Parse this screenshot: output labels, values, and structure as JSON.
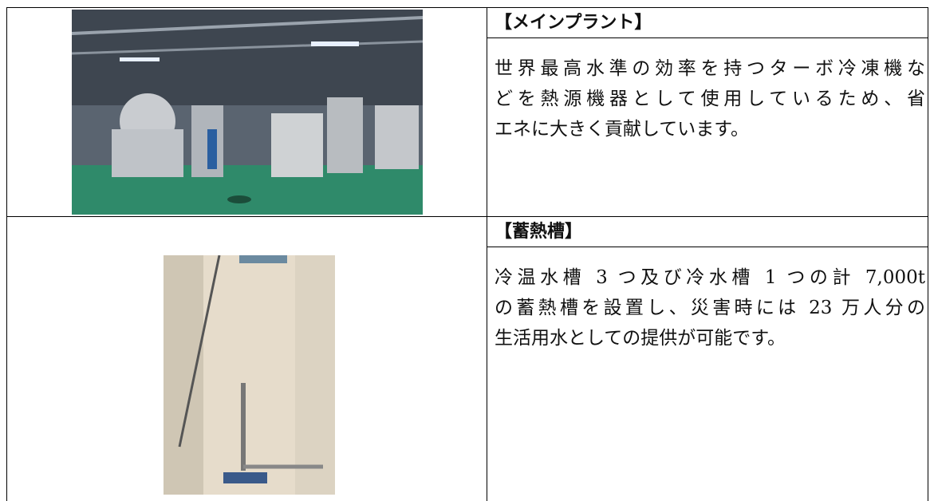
{
  "table": {
    "rows": [
      {
        "heading": "【メインプラント】",
        "lines": [
          "世界最高水準の効率を持つターボ冷凍機な",
          "どを熱源機器として使用しているため、省",
          "エネに大きく貢献しています。"
        ]
      },
      {
        "heading": "【蓄熱槽】",
        "lines": [
          "冷温水槽 3 つ及び冷水槽 1 つの計 7,000t",
          "の蓄熱槽を設置し、災害時には 23 万人分の",
          "生活用水としての提供が可能です。"
        ]
      }
    ]
  }
}
